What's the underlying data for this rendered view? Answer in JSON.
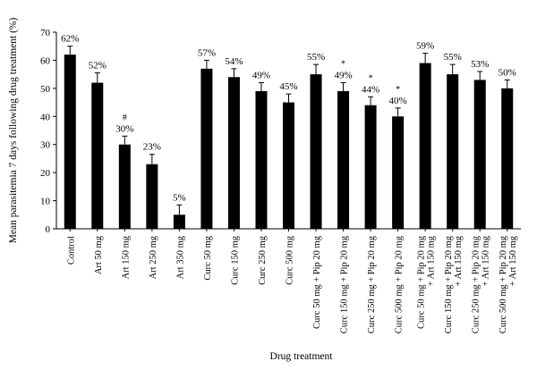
{
  "chart_data": {
    "type": "bar",
    "title": "",
    "xlabel": "Drug treatment",
    "ylabel": "Mean parasitemia 7 days  following drug treatment (%)",
    "ylim": [
      0,
      70
    ],
    "yticks": [
      0,
      10,
      20,
      30,
      40,
      50,
      60,
      70
    ],
    "grid": false,
    "categories": [
      [
        "Control"
      ],
      [
        "Art 50 mg"
      ],
      [
        "Art 150 mg"
      ],
      [
        "Art 250 mg"
      ],
      [
        "Art 350 mg"
      ],
      [
        "Curc 50 mg"
      ],
      [
        "Curc 150 mg"
      ],
      [
        "Curc 250 mg"
      ],
      [
        "Curc 500 mg"
      ],
      [
        "Curc 50 mg + Pip 20 mg"
      ],
      [
        "Curc 150 mg + Pip 20 mg"
      ],
      [
        "Curc 250 mg + Pip 20 mg"
      ],
      [
        "Curc 500 mg + Pip 20 mg"
      ],
      [
        "Curc 50 mg + Pip 20 mg",
        "+ Art 150 mg"
      ],
      [
        "Curc 150 mg + Pip 20 mg",
        "+ Art 150 mg"
      ],
      [
        "Curc 250 mg + Pip 20 mg",
        "+ Art 150 mg"
      ],
      [
        "Curc 500 mg + Pip 20 mg",
        "+ Art 150 mg"
      ]
    ],
    "values": [
      62,
      52,
      30,
      23,
      5,
      57,
      54,
      49,
      45,
      55,
      49,
      44,
      40,
      59,
      55,
      53,
      50
    ],
    "errors": [
      3,
      3.5,
      3,
      3.5,
      3.5,
      3,
      3,
      3,
      3,
      3.5,
      3,
      3,
      3,
      3.5,
      3.5,
      3,
      3
    ],
    "value_labels": [
      "62%",
      "52%",
      "30%",
      "23%",
      "5%",
      "57%",
      "54%",
      "49%",
      "45%",
      "55%",
      "49%",
      "44%",
      "40%",
      "59%",
      "55%",
      "53%",
      "50%"
    ],
    "significance": [
      "",
      "",
      "#",
      "",
      "",
      "",
      "",
      "",
      "",
      "",
      "*",
      "*",
      "*",
      "",
      "",
      "",
      ""
    ]
  }
}
